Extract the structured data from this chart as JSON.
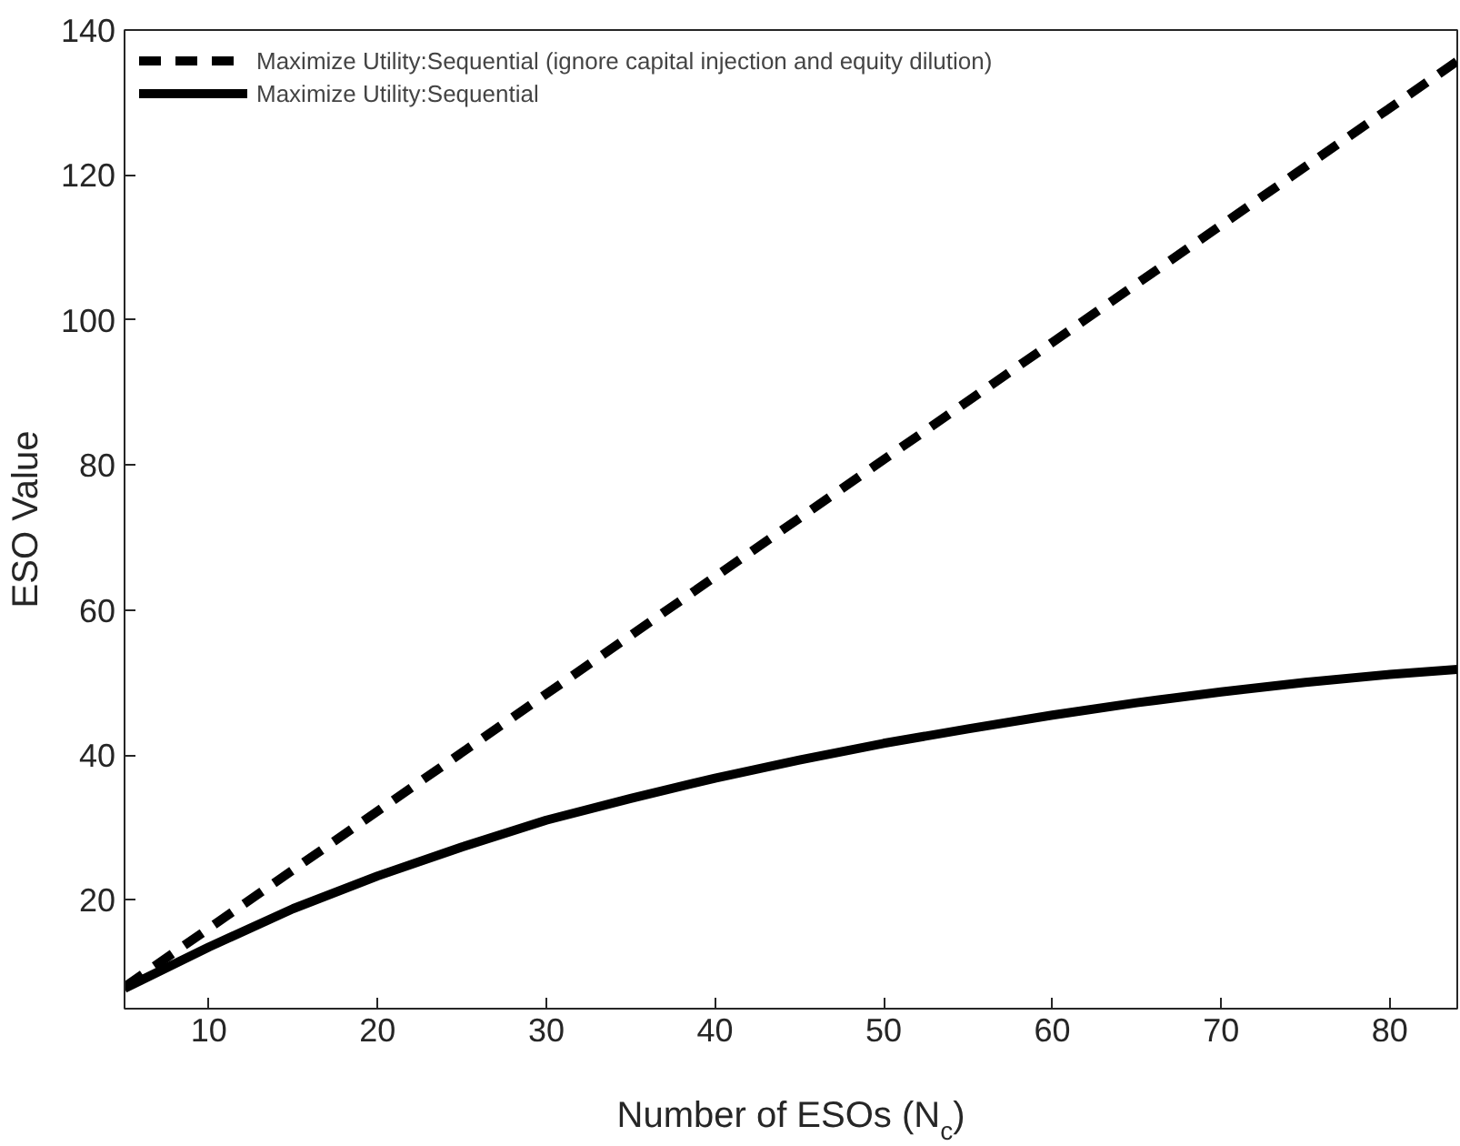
{
  "chart_data": {
    "type": "line",
    "xlabel": "Number of ESOs (N$_{c}$)",
    "ylabel": "ESO Value",
    "xlim": [
      5,
      84
    ],
    "ylim": [
      5,
      140
    ],
    "xticks": [
      10,
      20,
      30,
      40,
      50,
      60,
      70,
      80
    ],
    "yticks": [
      20,
      40,
      60,
      80,
      100,
      120,
      140
    ],
    "grid": false,
    "legend": "top left",
    "series": [
      {
        "name": "Maximize Utility:Sequential (ignore capital injection and equity dilution)",
        "color": "#000000",
        "line_style": "dashed",
        "x": [
          5,
          84
        ],
        "values": [
          8,
          135.7
        ]
      },
      {
        "name": "Maximize Utility:Sequential",
        "color": "#000000",
        "line_style": "solid",
        "x": [
          5,
          10,
          15,
          20,
          25,
          30,
          35,
          40,
          45,
          50,
          55,
          60,
          65,
          70,
          75,
          80,
          84
        ],
        "values": [
          7.8,
          13.5,
          18.8,
          23.3,
          27.3,
          31,
          34,
          36.8,
          39.3,
          41.6,
          43.6,
          45.5,
          47.2,
          48.7,
          50,
          51.1,
          51.8
        ]
      }
    ]
  }
}
